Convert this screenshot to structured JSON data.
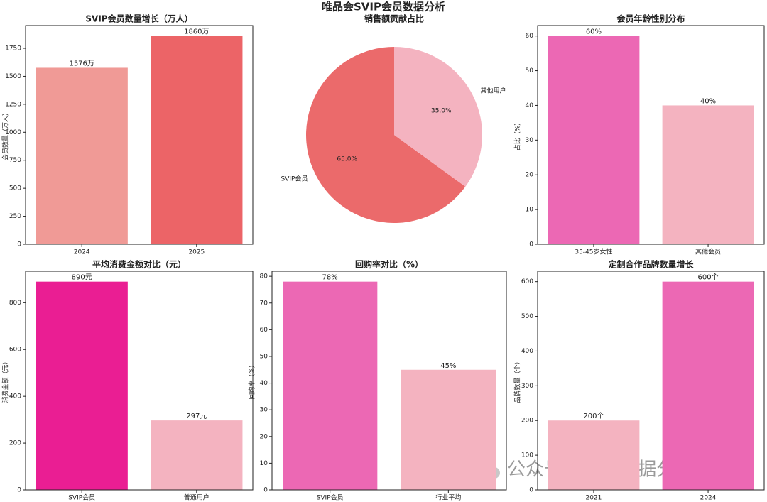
{
  "title": "唯品会SVIP会员数据分析",
  "watermark": "公众号 · CDA数据分析师",
  "chart_data": [
    {
      "type": "bar",
      "title": "SVIP会员数量增长（万人）",
      "y_label": "会员数量（万人）",
      "categories": [
        "2024",
        "2025"
      ],
      "values": [
        1576,
        1860
      ],
      "value_labels": [
        "1576万",
        "1860万"
      ],
      "colors": [
        "#f09a96",
        "#ec6467"
      ],
      "ylim": [
        0,
        1953
      ],
      "yticks": [
        0,
        250,
        500,
        750,
        1000,
        1250,
        1500,
        1750
      ]
    },
    {
      "type": "pie",
      "title": "销售额贡献占比",
      "categories": [
        "SVIP会员",
        "其他用户"
      ],
      "values": [
        65,
        35
      ],
      "value_labels": [
        "65.0%",
        "35.0%"
      ],
      "colors": [
        "#eb6a6b",
        "#f4b3c0"
      ]
    },
    {
      "type": "bar",
      "title": "会员年龄性别分布",
      "y_label": "占比（%）",
      "categories": [
        "35-45岁女性",
        "其他会员"
      ],
      "values": [
        60,
        40
      ],
      "value_labels": [
        "60%",
        "40%"
      ],
      "colors": [
        "#ec68b4",
        "#f4b3c0"
      ],
      "ylim": [
        0,
        63
      ],
      "yticks": [
        0,
        10,
        20,
        30,
        40,
        50,
        60
      ]
    },
    {
      "type": "bar",
      "title": "平均消费金额对比（元）",
      "y_label": "消费金额（元）",
      "categories": [
        "SVIP会员",
        "普通用户"
      ],
      "values": [
        890,
        297
      ],
      "value_labels": [
        "890元",
        "297元"
      ],
      "colors": [
        "#ea1e93",
        "#f4b3c0"
      ],
      "ylim": [
        0,
        934.5
      ],
      "yticks": [
        0,
        200,
        400,
        600,
        800
      ]
    },
    {
      "type": "bar",
      "title": "回购率对比（%）",
      "y_label": "回购率（%）",
      "categories": [
        "SVIP会员",
        "行业平均"
      ],
      "values": [
        78,
        45
      ],
      "value_labels": [
        "78%",
        "45%"
      ],
      "colors": [
        "#ec68b4",
        "#f4b3c0"
      ],
      "ylim": [
        0,
        81.9
      ],
      "yticks": [
        0,
        10,
        20,
        30,
        40,
        50,
        60,
        70,
        80
      ]
    },
    {
      "type": "bar",
      "title": "定制合作品牌数量增长",
      "y_label": "品牌数量（个）",
      "categories": [
        "2021",
        "2024"
      ],
      "values": [
        200,
        600
      ],
      "value_labels": [
        "200个",
        "600个"
      ],
      "colors": [
        "#f4b3c0",
        "#ec68b4"
      ],
      "ylim": [
        0,
        630
      ],
      "yticks": [
        0,
        100,
        200,
        300,
        400,
        500,
        600
      ]
    }
  ]
}
